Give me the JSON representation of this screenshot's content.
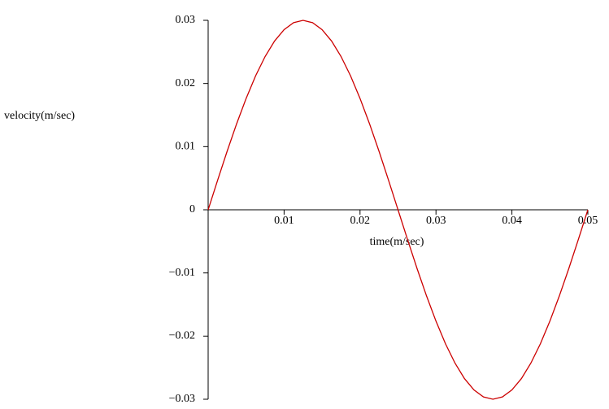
{
  "chart_data": {
    "type": "line",
    "x_label": "time(m/sec)",
    "y_label": "velocity(m/sec)",
    "x": [
      0,
      0.00125,
      0.0025,
      0.00375,
      0.005,
      0.00625,
      0.0075,
      0.00875,
      0.01,
      0.01125,
      0.0125,
      0.01375,
      0.015,
      0.01625,
      0.0175,
      0.01875,
      0.02,
      0.02125,
      0.0225,
      0.02375,
      0.025,
      0.02625,
      0.0275,
      0.02875,
      0.03,
      0.03125,
      0.0325,
      0.03375,
      0.035,
      0.03625,
      0.0375,
      0.03875,
      0.04,
      0.04125,
      0.0425,
      0.04375,
      0.045,
      0.04625,
      0.0475,
      0.04875,
      0.05
    ],
    "series": [
      {
        "name": "velocity",
        "color": "#cc0000",
        "values": [
          0,
          0.00469,
          0.00927,
          0.01362,
          0.01763,
          0.02121,
          0.02427,
          0.02673,
          0.02853,
          0.02963,
          0.03,
          0.02963,
          0.02853,
          0.02673,
          0.02427,
          0.02121,
          0.01763,
          0.01362,
          0.00927,
          0.00469,
          0,
          -0.00469,
          -0.00927,
          -0.01362,
          -0.01763,
          -0.02121,
          -0.02427,
          -0.02673,
          -0.02853,
          -0.02963,
          -0.03,
          -0.02963,
          -0.02853,
          -0.02673,
          -0.02427,
          -0.02121,
          -0.01763,
          -0.01362,
          -0.00927,
          -0.00469,
          0
        ]
      }
    ],
    "xlim": [
      0,
      0.05
    ],
    "ylim": [
      -0.03,
      0.03
    ],
    "xticks": [
      0.01,
      0.02,
      0.03,
      0.04,
      0.05
    ],
    "yticks": [
      {
        "value": -0.03,
        "label": "−0.03"
      },
      {
        "value": -0.02,
        "label": "−0.02"
      },
      {
        "value": -0.01,
        "label": "−0.01"
      },
      0,
      0.01,
      0.02,
      0.03
    ]
  }
}
